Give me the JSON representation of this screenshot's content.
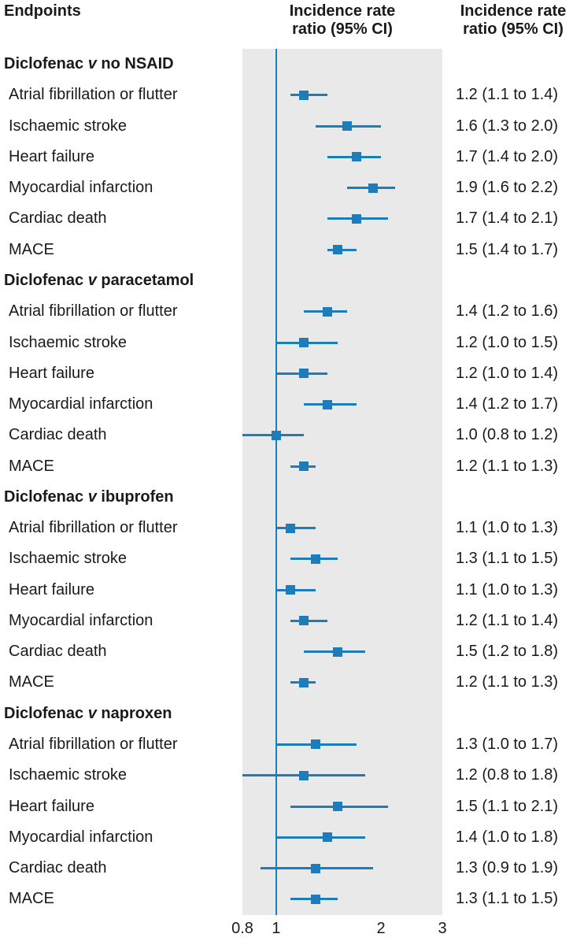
{
  "header": {
    "endpoints_label": "Endpoints",
    "plot_col_label": "Incidence rate\nratio (95% CI)",
    "value_col_label": "Incidence rate\nratio (95% CI)"
  },
  "chart_data": {
    "type": "forest",
    "x_scale": "log",
    "x_range": [
      0.8,
      3
    ],
    "x_ticks": [
      "0.8",
      "1",
      "2",
      "3"
    ],
    "x_tick_values": [
      0.8,
      1,
      2,
      3
    ],
    "reference_line": 1,
    "colors": {
      "marker": "#1d7cba",
      "ci_line": "#1d7cba",
      "reference_line": "#1d7cba",
      "band_background": "#e9e9e9",
      "text": "#1a1a1a"
    },
    "groups": [
      {
        "label": "Diclofenac v no NSAID",
        "rows": [
          {
            "label": "Atrial fibrillation or flutter",
            "estimate": 1.2,
            "lower": 1.1,
            "upper": 1.4,
            "text": "1.2 (1.1 to 1.4)"
          },
          {
            "label": "Ischaemic stroke",
            "estimate": 1.6,
            "lower": 1.3,
            "upper": 2.0,
            "text": "1.6 (1.3 to 2.0)"
          },
          {
            "label": "Heart failure",
            "estimate": 1.7,
            "lower": 1.4,
            "upper": 2.0,
            "text": "1.7 (1.4 to 2.0)"
          },
          {
            "label": "Myocardial infarction",
            "estimate": 1.9,
            "lower": 1.6,
            "upper": 2.2,
            "text": "1.9 (1.6 to 2.2)"
          },
          {
            "label": "Cardiac death",
            "estimate": 1.7,
            "lower": 1.4,
            "upper": 2.1,
            "text": "1.7 (1.4 to 2.1)"
          },
          {
            "label": "MACE",
            "estimate": 1.5,
            "lower": 1.4,
            "upper": 1.7,
            "text": "1.5 (1.4 to 1.7)"
          }
        ]
      },
      {
        "label": "Diclofenac v paracetamol",
        "rows": [
          {
            "label": "Atrial fibrillation or flutter",
            "estimate": 1.4,
            "lower": 1.2,
            "upper": 1.6,
            "text": "1.4 (1.2 to 1.6)"
          },
          {
            "label": "Ischaemic stroke",
            "estimate": 1.2,
            "lower": 1.0,
            "upper": 1.5,
            "text": "1.2 (1.0 to 1.5)"
          },
          {
            "label": "Heart failure",
            "estimate": 1.2,
            "lower": 1.0,
            "upper": 1.4,
            "text": "1.2 (1.0 to 1.4)"
          },
          {
            "label": "Myocardial infarction",
            "estimate": 1.4,
            "lower": 1.2,
            "upper": 1.7,
            "text": "1.4 (1.2 to 1.7)"
          },
          {
            "label": "Cardiac death",
            "estimate": 1.0,
            "lower": 0.8,
            "upper": 1.2,
            "text": "1.0 (0.8 to 1.2)"
          },
          {
            "label": "MACE",
            "estimate": 1.2,
            "lower": 1.1,
            "upper": 1.3,
            "text": "1.2 (1.1 to 1.3)"
          }
        ]
      },
      {
        "label": "Diclofenac v ibuprofen",
        "rows": [
          {
            "label": "Atrial fibrillation or flutter",
            "estimate": 1.1,
            "lower": 1.0,
            "upper": 1.3,
            "text": "1.1 (1.0 to 1.3)"
          },
          {
            "label": "Ischaemic stroke",
            "estimate": 1.3,
            "lower": 1.1,
            "upper": 1.5,
            "text": "1.3 (1.1 to 1.5)"
          },
          {
            "label": "Heart failure",
            "estimate": 1.1,
            "lower": 1.0,
            "upper": 1.3,
            "text": "1.1 (1.0 to 1.3)"
          },
          {
            "label": "Myocardial infarction",
            "estimate": 1.2,
            "lower": 1.1,
            "upper": 1.4,
            "text": "1.2 (1.1 to 1.4)"
          },
          {
            "label": "Cardiac death",
            "estimate": 1.5,
            "lower": 1.2,
            "upper": 1.8,
            "text": "1.5 (1.2 to 1.8)"
          },
          {
            "label": "MACE",
            "estimate": 1.2,
            "lower": 1.1,
            "upper": 1.3,
            "text": "1.2 (1.1 to 1.3)"
          }
        ]
      },
      {
        "label": "Diclofenac v naproxen",
        "rows": [
          {
            "label": "Atrial fibrillation or flutter",
            "estimate": 1.3,
            "lower": 1.0,
            "upper": 1.7,
            "text": "1.3 (1.0 to 1.7)"
          },
          {
            "label": "Ischaemic stroke",
            "estimate": 1.2,
            "lower": 0.8,
            "upper": 1.8,
            "text": "1.2 (0.8 to 1.8)"
          },
          {
            "label": "Heart failure",
            "estimate": 1.5,
            "lower": 1.1,
            "upper": 2.1,
            "text": "1.5 (1.1 to 2.1)"
          },
          {
            "label": "Myocardial infarction",
            "estimate": 1.4,
            "lower": 1.0,
            "upper": 1.8,
            "text": "1.4 (1.0 to 1.8)"
          },
          {
            "label": "Cardiac death",
            "estimate": 1.3,
            "lower": 0.9,
            "upper": 1.9,
            "text": "1.3 (0.9 to 1.9)"
          },
          {
            "label": "MACE",
            "estimate": 1.3,
            "lower": 1.1,
            "upper": 1.5,
            "text": "1.3 (1.1 to 1.5)"
          }
        ]
      }
    ]
  }
}
